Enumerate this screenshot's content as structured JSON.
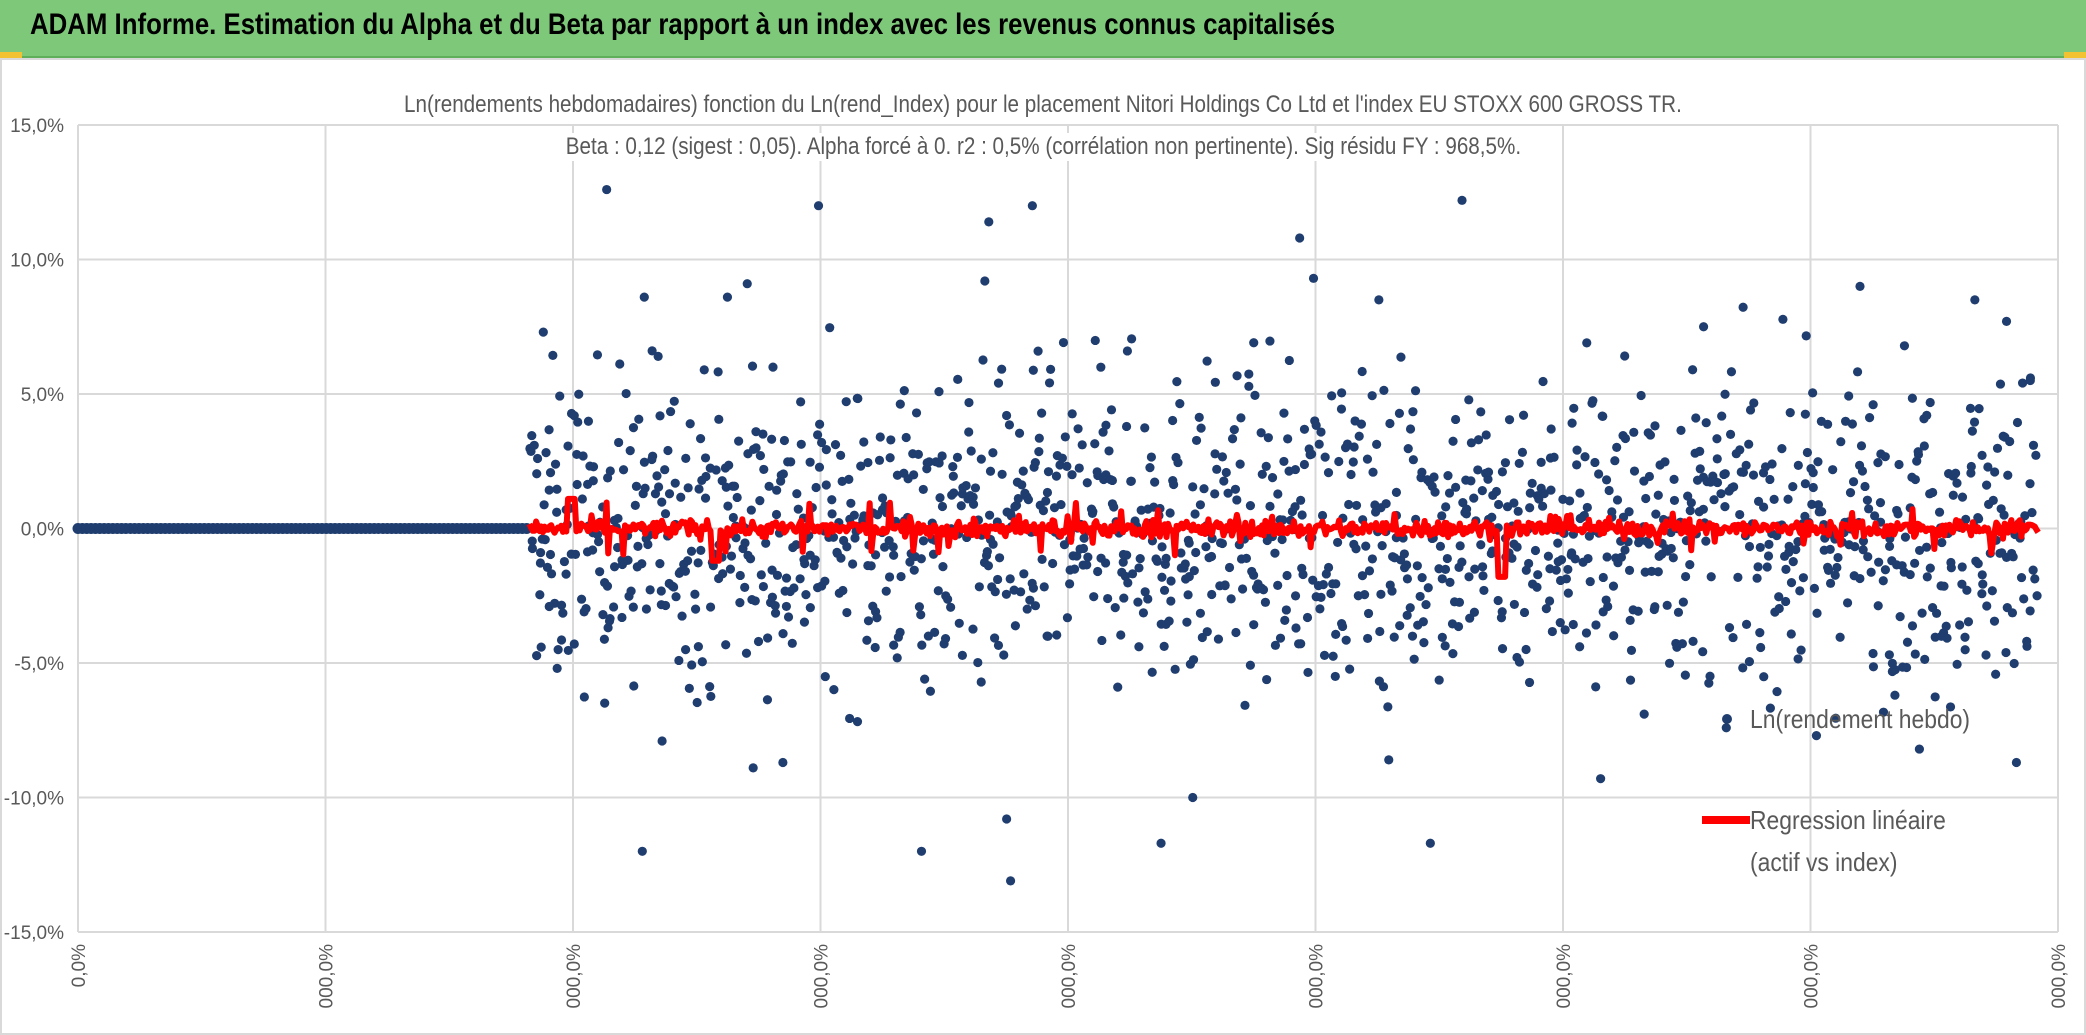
{
  "banner": {
    "title": "ADAM Informe. Estimation du Alpha et du Beta par rapport à un index avec les revenus connus capitalisés"
  },
  "colors": {
    "banner_bg": "#7ec87a",
    "scatter": "#1f3d6e",
    "regression": "#ff0000",
    "grid": "#d9d9d9",
    "text": "#595959"
  },
  "chart_data": {
    "type": "scatter",
    "title": "Ln(rendements hebdomadaires) fonction du Ln(rend_Index) pour le placement Nitori Holdings Co Ltd et l'index EU STOXX 600 GROSS TR.",
    "subtitle": "Beta : 0,12 (sigest : 0,05). Alpha forcé à 0. r2 : 0,5% (corrélation non pertinente). Sig résidu FY : 968,5%.",
    "ylim": [
      -0.15,
      0.15
    ],
    "y_ticks": [
      "15,0%",
      "10,0%",
      "5,0%",
      "0,0%",
      "-5,0%",
      "-10,0%",
      "-15,0%"
    ],
    "y_tick_values": [
      0.15,
      0.1,
      0.05,
      0.0,
      -0.05,
      -0.1,
      -0.15
    ],
    "x_ticks": [
      "0,0%",
      "000,0%",
      "000,0%",
      "000,0%",
      "000,0%",
      "000,0%",
      "000,0%",
      "000,0%",
      "000,0%"
    ],
    "grid": true,
    "legend_position": "right",
    "series": [
      {
        "name": "Ln(rendement hebdo)",
        "kind": "scatter",
        "note_values": "dense cloud of weekly log-returns within approx -13% to +12.7%, plus a flat run at 0,0% on the left",
        "sample_points": [
          {
            "x": 0.235,
            "y": 0.073
          },
          {
            "x": 0.238,
            "y": -0.029
          },
          {
            "x": 0.242,
            "y": -0.052
          },
          {
            "x": 0.267,
            "y": 0.126
          },
          {
            "x": 0.285,
            "y": -0.12
          },
          {
            "x": 0.286,
            "y": 0.086
          },
          {
            "x": 0.293,
            "y": 0.064
          },
          {
            "x": 0.295,
            "y": -0.079
          },
          {
            "x": 0.328,
            "y": 0.086
          },
          {
            "x": 0.338,
            "y": 0.091
          },
          {
            "x": 0.341,
            "y": -0.089
          },
          {
            "x": 0.351,
            "y": 0.06
          },
          {
            "x": 0.356,
            "y": -0.087
          },
          {
            "x": 0.374,
            "y": 0.12
          },
          {
            "x": 0.426,
            "y": -0.12
          },
          {
            "x": 0.458,
            "y": 0.092
          },
          {
            "x": 0.46,
            "y": 0.114
          },
          {
            "x": 0.469,
            "y": -0.108
          },
          {
            "x": 0.471,
            "y": -0.131
          },
          {
            "x": 0.482,
            "y": 0.12
          },
          {
            "x": 0.53,
            "y": 0.066
          },
          {
            "x": 0.547,
            "y": -0.117
          },
          {
            "x": 0.563,
            "y": -0.1
          },
          {
            "x": 0.617,
            "y": 0.108
          },
          {
            "x": 0.624,
            "y": 0.093
          },
          {
            "x": 0.657,
            "y": 0.085
          },
          {
            "x": 0.662,
            "y": -0.086
          },
          {
            "x": 0.683,
            "y": -0.117
          },
          {
            "x": 0.699,
            "y": 0.122
          },
          {
            "x": 0.762,
            "y": 0.069
          },
          {
            "x": 0.769,
            "y": -0.093
          },
          {
            "x": 0.791,
            "y": -0.069
          },
          {
            "x": 0.821,
            "y": 0.075
          },
          {
            "x": 0.878,
            "y": -0.077
          },
          {
            "x": 0.9,
            "y": 0.09
          },
          {
            "x": 0.93,
            "y": -0.082
          },
          {
            "x": 0.958,
            "y": 0.085
          },
          {
            "x": 0.974,
            "y": 0.077
          },
          {
            "x": 0.979,
            "y": -0.087
          },
          {
            "x": 0.986,
            "y": 0.055
          }
        ]
      },
      {
        "name": "Regression linéaire (actif vs index)",
        "kind": "line",
        "note_values": "fitted values near 0,0% across the active range, spikes up to about +1% and down to about -2%"
      }
    ],
    "legend": [
      {
        "label": "Ln(rendement hebdo)"
      },
      {
        "label_line1": "Regression linéaire",
        "label_line2": "(actif vs index)"
      }
    ]
  }
}
